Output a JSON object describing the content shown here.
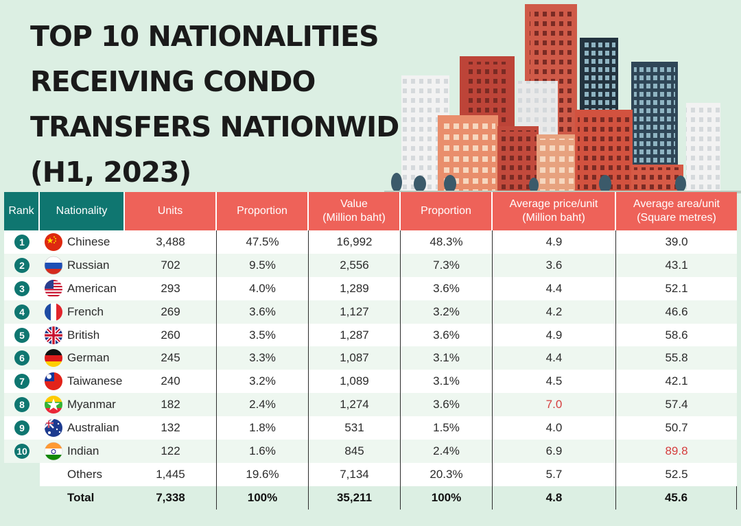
{
  "title_lines": [
    "TOP 10 NATIONALITIES",
    "RECEIVING CONDO",
    "TRANSFERS NATIONWIDE",
    "(H1, 2023)"
  ],
  "colors": {
    "teal": "#0f7670",
    "coral": "#ee6259",
    "highlight": "#d53d3d",
    "background": "#dcefe3"
  },
  "table": {
    "headers": [
      {
        "l1": "Rank",
        "l2": ""
      },
      {
        "l1": "Nationality",
        "l2": ""
      },
      {
        "l1": "Units",
        "l2": ""
      },
      {
        "l1": "Proportion",
        "l2": ""
      },
      {
        "l1": "Value",
        "l2": "(Million baht)"
      },
      {
        "l1": "Proportion",
        "l2": ""
      },
      {
        "l1": "Average price/unit",
        "l2": "(Million baht)"
      },
      {
        "l1": "Average area/unit",
        "l2": "(Square metres)"
      }
    ],
    "rows": [
      {
        "rank": "1",
        "nationality": "Chinese",
        "flag": "china-flag-icon",
        "units": "3,488",
        "units_prop": "47.5%",
        "value": "16,992",
        "value_prop": "48.3%",
        "avg_price": "4.9",
        "avg_area": "39.0"
      },
      {
        "rank": "2",
        "nationality": "Russian",
        "flag": "russia-flag-icon",
        "units": "702",
        "units_prop": "9.5%",
        "value": "2,556",
        "value_prop": "7.3%",
        "avg_price": "3.6",
        "avg_area": "43.1"
      },
      {
        "rank": "3",
        "nationality": "American",
        "flag": "usa-flag-icon",
        "units": "293",
        "units_prop": "4.0%",
        "value": "1,289",
        "value_prop": "3.6%",
        "avg_price": "4.4",
        "avg_area": "52.1"
      },
      {
        "rank": "4",
        "nationality": "French",
        "flag": "france-flag-icon",
        "units": "269",
        "units_prop": "3.6%",
        "value": "1,127",
        "value_prop": "3.2%",
        "avg_price": "4.2",
        "avg_area": "46.6"
      },
      {
        "rank": "5",
        "nationality": "British",
        "flag": "uk-flag-icon",
        "units": "260",
        "units_prop": "3.5%",
        "value": "1,287",
        "value_prop": "3.6%",
        "avg_price": "4.9",
        "avg_area": "58.6"
      },
      {
        "rank": "6",
        "nationality": "German",
        "flag": "germany-flag-icon",
        "units": "245",
        "units_prop": "3.3%",
        "value": "1,087",
        "value_prop": "3.1%",
        "avg_price": "4.4",
        "avg_area": "55.8"
      },
      {
        "rank": "7",
        "nationality": "Taiwanese",
        "flag": "taiwan-flag-icon",
        "units": "240",
        "units_prop": "3.2%",
        "value": "1,089",
        "value_prop": "3.1%",
        "avg_price": "4.5",
        "avg_area": "42.1"
      },
      {
        "rank": "8",
        "nationality": "Myanmar",
        "flag": "myanmar-flag-icon",
        "units": "182",
        "units_prop": "2.4%",
        "value": "1,274",
        "value_prop": "3.6%",
        "avg_price": "7.0",
        "avg_area": "57.4",
        "hl_price": true
      },
      {
        "rank": "9",
        "nationality": "Australian",
        "flag": "australia-flag-icon",
        "units": "132",
        "units_prop": "1.8%",
        "value": "531",
        "value_prop": "1.5%",
        "avg_price": "4.0",
        "avg_area": "50.7"
      },
      {
        "rank": "10",
        "nationality": "Indian",
        "flag": "india-flag-icon",
        "units": "122",
        "units_prop": "1.6%",
        "value": "845",
        "value_prop": "2.4%",
        "avg_price": "6.9",
        "avg_area": "89.8",
        "hl_area": true
      },
      {
        "rank": "",
        "nationality": "Others",
        "flag": "",
        "units": "1,445",
        "units_prop": "19.6%",
        "value": "7,134",
        "value_prop": "20.3%",
        "avg_price": "5.7",
        "avg_area": "52.5",
        "kind": "others"
      },
      {
        "rank": "",
        "nationality": "Total",
        "flag": "",
        "units": "7,338",
        "units_prop": "100%",
        "value": "35,211",
        "value_prop": "100%",
        "avg_price": "4.8",
        "avg_area": "45.6",
        "kind": "total"
      }
    ]
  },
  "chart_data": {
    "type": "table",
    "title": "TOP 10 NATIONALITIES RECEIVING CONDO TRANSFERS NATIONWIDE (H1, 2023)",
    "columns": [
      "Rank",
      "Nationality",
      "Units",
      "Proportion",
      "Value (Million baht)",
      "Proportion",
      "Average price/unit (Million baht)",
      "Average area/unit (Square metres)"
    ],
    "rows": [
      [
        1,
        "Chinese",
        3488,
        47.5,
        16992,
        48.3,
        4.9,
        39.0
      ],
      [
        2,
        "Russian",
        702,
        9.5,
        2556,
        7.3,
        3.6,
        43.1
      ],
      [
        3,
        "American",
        293,
        4.0,
        1289,
        3.6,
        4.4,
        52.1
      ],
      [
        4,
        "French",
        269,
        3.6,
        1127,
        3.2,
        4.2,
        46.6
      ],
      [
        5,
        "British",
        260,
        3.5,
        1287,
        3.6,
        4.9,
        58.6
      ],
      [
        6,
        "German",
        245,
        3.3,
        1087,
        3.1,
        4.4,
        55.8
      ],
      [
        7,
        "Taiwanese",
        240,
        3.2,
        1089,
        3.1,
        4.5,
        42.1
      ],
      [
        8,
        "Myanmar",
        182,
        2.4,
        1274,
        3.6,
        7.0,
        57.4
      ],
      [
        9,
        "Australian",
        132,
        1.8,
        531,
        1.5,
        4.0,
        50.7
      ],
      [
        10,
        "Indian",
        122,
        1.6,
        845,
        2.4,
        6.9,
        89.8
      ],
      [
        null,
        "Others",
        1445,
        19.6,
        7134,
        20.3,
        5.7,
        52.5
      ],
      [
        null,
        "Total",
        7338,
        100,
        35211,
        100,
        4.8,
        45.6
      ]
    ]
  }
}
